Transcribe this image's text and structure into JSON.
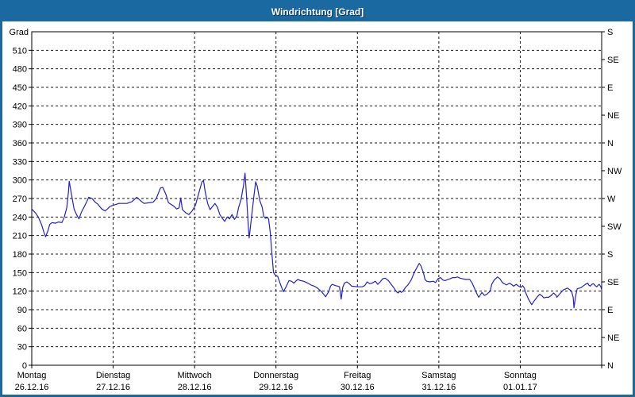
{
  "window": {
    "title": "Windrichtung [Grad]"
  },
  "chart_data": {
    "type": "line",
    "title": "Windrichtung [Grad]",
    "ylabel": "Grad",
    "ylim": [
      0,
      540
    ],
    "xlim_days": [
      0,
      7
    ],
    "grid": "dashed",
    "legend": "none",
    "colors": {
      "accent": "#1a6aa1",
      "line": "#2121cd",
      "grid": "#1a1a1a",
      "text": "#000000",
      "plot_bg": "#ffffff"
    },
    "y_left_ticks": [
      0,
      30,
      60,
      90,
      120,
      150,
      180,
      210,
      240,
      270,
      300,
      330,
      360,
      390,
      420,
      450,
      480,
      510
    ],
    "y_right_ticks": [
      {
        "deg": 0,
        "label": "N"
      },
      {
        "deg": 45,
        "label": "NE"
      },
      {
        "deg": 90,
        "label": "E"
      },
      {
        "deg": 135,
        "label": "SE"
      },
      {
        "deg": 180,
        "label": "S"
      },
      {
        "deg": 225,
        "label": "SW"
      },
      {
        "deg": 270,
        "label": "W"
      },
      {
        "deg": 315,
        "label": "NW"
      },
      {
        "deg": 360,
        "label": "N"
      },
      {
        "deg": 405,
        "label": "NE"
      },
      {
        "deg": 450,
        "label": "E"
      },
      {
        "deg": 495,
        "label": "SE"
      },
      {
        "deg": 540,
        "label": "S"
      }
    ],
    "x_axis": {
      "days": [
        {
          "name": "Montag",
          "date": "26.12.16"
        },
        {
          "name": "Dienstag",
          "date": "27.12.16"
        },
        {
          "name": "Mittwoch",
          "date": "28.12.16"
        },
        {
          "name": "Donnerstag",
          "date": "29.12.16"
        },
        {
          "name": "Freitag",
          "date": "30.12.16"
        },
        {
          "name": "Samstag",
          "date": "31.12.16"
        },
        {
          "name": "Sonntag",
          "date": "01.01.17"
        }
      ]
    },
    "series": [
      {
        "name": "Windrichtung",
        "unit": "Grad",
        "color": "#2121cd",
        "points": [
          [
            0.0,
            253
          ],
          [
            0.05,
            246
          ],
          [
            0.08,
            240
          ],
          [
            0.12,
            228
          ],
          [
            0.15,
            215
          ],
          [
            0.17,
            208
          ],
          [
            0.2,
            218
          ],
          [
            0.22,
            228
          ],
          [
            0.25,
            231
          ],
          [
            0.29,
            230
          ],
          [
            0.33,
            232
          ],
          [
            0.37,
            231
          ],
          [
            0.4,
            240
          ],
          [
            0.43,
            255
          ],
          [
            0.45,
            280
          ],
          [
            0.46,
            298
          ],
          [
            0.49,
            275
          ],
          [
            0.52,
            253
          ],
          [
            0.55,
            244
          ],
          [
            0.58,
            237
          ],
          [
            0.61,
            248
          ],
          [
            0.65,
            258
          ],
          [
            0.68,
            266
          ],
          [
            0.7,
            272
          ],
          [
            0.74,
            270
          ],
          [
            0.78,
            264
          ],
          [
            0.81,
            261
          ],
          [
            0.86,
            253
          ],
          [
            0.9,
            250
          ],
          [
            0.93,
            253
          ],
          [
            0.96,
            257
          ],
          [
            1.0,
            259
          ],
          [
            1.07,
            262
          ],
          [
            1.17,
            262
          ],
          [
            1.23,
            265
          ],
          [
            1.29,
            272
          ],
          [
            1.34,
            266
          ],
          [
            1.38,
            262
          ],
          [
            1.44,
            263
          ],
          [
            1.49,
            264
          ],
          [
            1.53,
            270
          ],
          [
            1.58,
            287
          ],
          [
            1.61,
            288
          ],
          [
            1.65,
            276
          ],
          [
            1.68,
            263
          ],
          [
            1.74,
            258
          ],
          [
            1.78,
            253
          ],
          [
            1.81,
            255
          ],
          [
            1.83,
            271
          ],
          [
            1.85,
            252
          ],
          [
            1.89,
            247
          ],
          [
            1.93,
            244
          ],
          [
            1.97,
            250
          ],
          [
            2.01,
            259
          ],
          [
            2.05,
            278
          ],
          [
            2.09,
            297
          ],
          [
            2.11,
            299
          ],
          [
            2.13,
            281
          ],
          [
            2.16,
            262
          ],
          [
            2.19,
            252
          ],
          [
            2.22,
            257
          ],
          [
            2.25,
            262
          ],
          [
            2.28,
            256
          ],
          [
            2.31,
            244
          ],
          [
            2.34,
            238
          ],
          [
            2.37,
            233
          ],
          [
            2.4,
            240
          ],
          [
            2.43,
            237
          ],
          [
            2.46,
            244
          ],
          [
            2.49,
            236
          ],
          [
            2.52,
            242
          ],
          [
            2.54,
            255
          ],
          [
            2.57,
            268
          ],
          [
            2.6,
            290
          ],
          [
            2.62,
            311
          ],
          [
            2.64,
            270
          ],
          [
            2.66,
            225
          ],
          [
            2.67,
            206
          ],
          [
            2.7,
            240
          ],
          [
            2.73,
            275
          ],
          [
            2.75,
            297
          ],
          [
            2.77,
            290
          ],
          [
            2.8,
            267
          ],
          [
            2.83,
            256
          ],
          [
            2.85,
            241
          ],
          [
            2.87,
            238
          ],
          [
            2.9,
            239
          ],
          [
            2.91,
            236
          ],
          [
            2.93,
            215
          ],
          [
            2.95,
            180
          ],
          [
            2.97,
            150
          ],
          [
            2.99,
            146
          ],
          [
            3.02,
            144
          ],
          [
            3.05,
            133
          ],
          [
            3.09,
            119
          ],
          [
            3.12,
            126
          ],
          [
            3.16,
            137
          ],
          [
            3.19,
            136
          ],
          [
            3.22,
            133
          ],
          [
            3.25,
            137
          ],
          [
            3.27,
            139
          ],
          [
            3.3,
            137
          ],
          [
            3.34,
            136
          ],
          [
            3.39,
            133
          ],
          [
            3.43,
            130
          ],
          [
            3.47,
            128
          ],
          [
            3.51,
            125
          ],
          [
            3.56,
            119
          ],
          [
            3.61,
            111
          ],
          [
            3.65,
            120
          ],
          [
            3.67,
            128
          ],
          [
            3.69,
            131
          ],
          [
            3.73,
            129
          ],
          [
            3.76,
            128
          ],
          [
            3.78,
            127
          ],
          [
            3.8,
            107
          ],
          [
            3.82,
            126
          ],
          [
            3.84,
            133
          ],
          [
            3.87,
            135
          ],
          [
            3.9,
            132
          ],
          [
            3.93,
            128
          ],
          [
            4.0,
            127
          ],
          [
            4.06,
            127
          ],
          [
            4.09,
            129
          ],
          [
            4.12,
            135
          ],
          [
            4.15,
            132
          ],
          [
            4.18,
            133
          ],
          [
            4.22,
            136
          ],
          [
            4.25,
            131
          ],
          [
            4.28,
            135
          ],
          [
            4.31,
            140
          ],
          [
            4.34,
            141
          ],
          [
            4.38,
            137
          ],
          [
            4.42,
            130
          ],
          [
            4.45,
            125
          ],
          [
            4.48,
            119
          ],
          [
            4.5,
            117
          ],
          [
            4.52,
            120
          ],
          [
            4.54,
            118
          ],
          [
            4.56,
            120
          ],
          [
            4.59,
            126
          ],
          [
            4.62,
            130
          ],
          [
            4.66,
            138
          ],
          [
            4.7,
            151
          ],
          [
            4.73,
            158
          ],
          [
            4.76,
            165
          ],
          [
            4.78,
            161
          ],
          [
            4.81,
            150
          ],
          [
            4.83,
            139
          ],
          [
            4.85,
            136
          ],
          [
            4.89,
            135
          ],
          [
            4.93,
            136
          ],
          [
            4.96,
            134
          ],
          [
            4.99,
            140
          ],
          [
            5.02,
            142
          ],
          [
            5.05,
            138
          ],
          [
            5.08,
            137
          ],
          [
            5.11,
            139
          ],
          [
            5.14,
            140
          ],
          [
            5.17,
            142
          ],
          [
            5.2,
            142
          ],
          [
            5.23,
            143
          ],
          [
            5.26,
            141
          ],
          [
            5.29,
            140
          ],
          [
            5.33,
            139
          ],
          [
            5.38,
            139
          ],
          [
            5.41,
            133
          ],
          [
            5.44,
            124
          ],
          [
            5.47,
            115
          ],
          [
            5.49,
            110
          ],
          [
            5.51,
            114
          ],
          [
            5.53,
            118
          ],
          [
            5.56,
            113
          ],
          [
            5.59,
            115
          ],
          [
            5.63,
            120
          ],
          [
            5.65,
            131
          ],
          [
            5.68,
            138
          ],
          [
            5.72,
            143
          ],
          [
            5.75,
            140
          ],
          [
            5.78,
            134
          ],
          [
            5.83,
            130
          ],
          [
            5.87,
            133
          ],
          [
            5.9,
            130
          ],
          [
            5.92,
            128
          ],
          [
            5.95,
            131
          ],
          [
            5.98,
            128
          ],
          [
            6.01,
            126
          ],
          [
            6.03,
            129
          ],
          [
            6.05,
            125
          ],
          [
            6.06,
            120
          ],
          [
            6.09,
            110
          ],
          [
            6.11,
            105
          ],
          [
            6.14,
            98
          ],
          [
            6.17,
            104
          ],
          [
            6.21,
            111
          ],
          [
            6.24,
            115
          ],
          [
            6.27,
            112
          ],
          [
            6.29,
            109
          ],
          [
            6.32,
            110
          ],
          [
            6.35,
            110
          ],
          [
            6.38,
            113
          ],
          [
            6.41,
            117
          ],
          [
            6.44,
            113
          ],
          [
            6.45,
            110
          ],
          [
            6.48,
            115
          ],
          [
            6.51,
            119
          ],
          [
            6.53,
            122
          ],
          [
            6.58,
            125
          ],
          [
            6.61,
            122
          ],
          [
            6.63,
            120
          ],
          [
            6.65,
            110
          ],
          [
            6.66,
            93
          ],
          [
            6.68,
            112
          ],
          [
            6.7,
            124
          ],
          [
            6.73,
            125
          ],
          [
            6.75,
            126
          ],
          [
            6.78,
            129
          ],
          [
            6.8,
            131
          ],
          [
            6.83,
            133
          ],
          [
            6.84,
            130
          ],
          [
            6.86,
            128
          ],
          [
            6.88,
            131
          ],
          [
            6.9,
            132
          ],
          [
            6.92,
            129
          ],
          [
            6.94,
            127
          ],
          [
            6.96,
            130
          ],
          [
            6.97,
            131
          ],
          [
            6.99,
            127
          ],
          [
            7.0,
            122
          ]
        ]
      }
    ]
  }
}
